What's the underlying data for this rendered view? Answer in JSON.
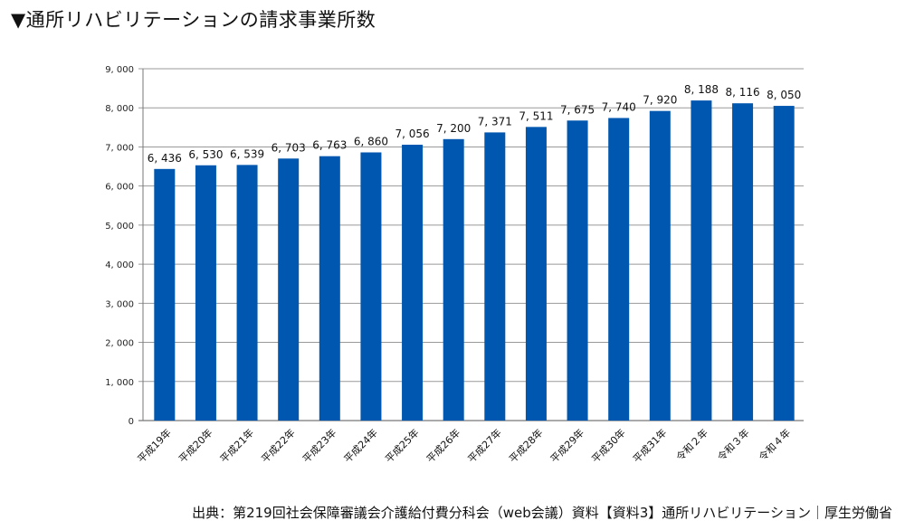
{
  "title": "▼通所リハビリテーションの請求事業所数",
  "source": "出典：第219回社会保障審議会介護給付費分科会（web会議）資料【資料3】通所リハビリテーション｜厚生労働省",
  "chart_data": {
    "type": "bar",
    "title": "▼通所リハビリテーションの請求事業所数",
    "xlabel": "",
    "ylabel": "",
    "categories": [
      "平成19年",
      "平成20年",
      "平成21年",
      "平成22年",
      "平成23年",
      "平成24年",
      "平成25年",
      "平成26年",
      "平成27年",
      "平成28年",
      "平成29年",
      "平成30年",
      "平成31年",
      "令和２年",
      "令和３年",
      "令和４年"
    ],
    "values": [
      6436,
      6530,
      6539,
      6703,
      6763,
      6860,
      7056,
      7200,
      7371,
      7511,
      7675,
      7740,
      7920,
      8188,
      8116,
      8050
    ],
    "data_labels": [
      "6, 436",
      "6, 530",
      "6, 539",
      "6, 703",
      "6, 763",
      "6, 860",
      "7, 056",
      "7, 200",
      "7, 371",
      "7, 511",
      "7, 675",
      "7, 740",
      "7, 920",
      "8, 188",
      "8, 116",
      "8, 050"
    ],
    "ylim": [
      0,
      9000
    ],
    "yticks": [
      0,
      1000,
      2000,
      3000,
      4000,
      5000,
      6000,
      7000,
      8000,
      9000
    ],
    "ytick_labels": [
      "0",
      "1, 000",
      "2, 000",
      "3, 000",
      "4, 000",
      "5, 000",
      "6, 000",
      "7, 000",
      "8, 000",
      "9, 000"
    ],
    "grid": true,
    "legend": "none",
    "bar_color": "#0057B0"
  }
}
